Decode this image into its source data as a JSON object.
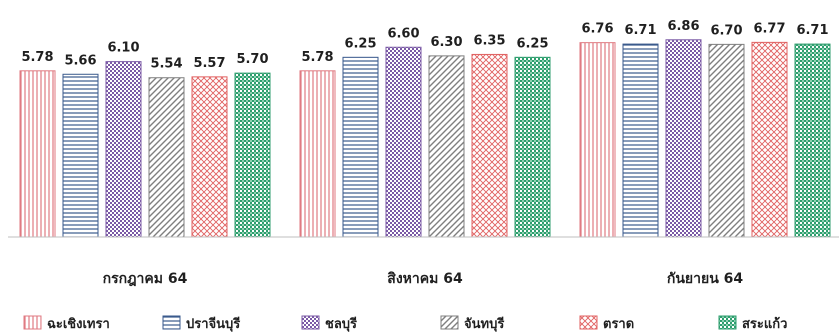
{
  "chart_data": {
    "type": "bar",
    "categories": [
      "กรกฎาคม 64",
      "สิงหาคม 64",
      "กันยายน 64"
    ],
    "series": [
      {
        "name": "ฉะเชิงเทรา",
        "values": [
          5.78,
          5.78,
          6.76
        ],
        "color": "#e07a82",
        "pattern": "vertical-lines"
      },
      {
        "name": "ปราจีนบุรี",
        "values": [
          5.66,
          6.25,
          6.71
        ],
        "color": "#3a5a8c",
        "pattern": "horizontal-lines"
      },
      {
        "name": "ชลบุรี",
        "values": [
          6.1,
          6.6,
          6.86
        ],
        "color": "#7b5aa6",
        "pattern": "dots"
      },
      {
        "name": "จันทบุรี",
        "values": [
          5.54,
          6.3,
          6.7
        ],
        "color": "#7f7f7f",
        "pattern": "diagonal-lines"
      },
      {
        "name": "ตราด",
        "values": [
          5.57,
          6.35,
          6.77
        ],
        "color": "#e06060",
        "pattern": "crosshatch"
      },
      {
        "name": "สระแก้ว",
        "values": [
          5.7,
          6.25,
          6.71
        ],
        "color": "#2e9e6e",
        "pattern": "checker"
      }
    ],
    "value_labels": [
      [
        "5.78",
        "5.66",
        "6.10",
        "5.54",
        "5.57",
        "5.70"
      ],
      [
        "5.78",
        "6.25",
        "6.60",
        "6.30",
        "6.35",
        "6.25"
      ],
      [
        "6.76",
        "6.71",
        "6.86",
        "6.70",
        "6.77",
        "6.71"
      ]
    ],
    "title": "",
    "xlabel": "",
    "ylabel": "",
    "ylim": [
      0,
      7.2
    ],
    "grid": false,
    "legend": "bottom"
  }
}
